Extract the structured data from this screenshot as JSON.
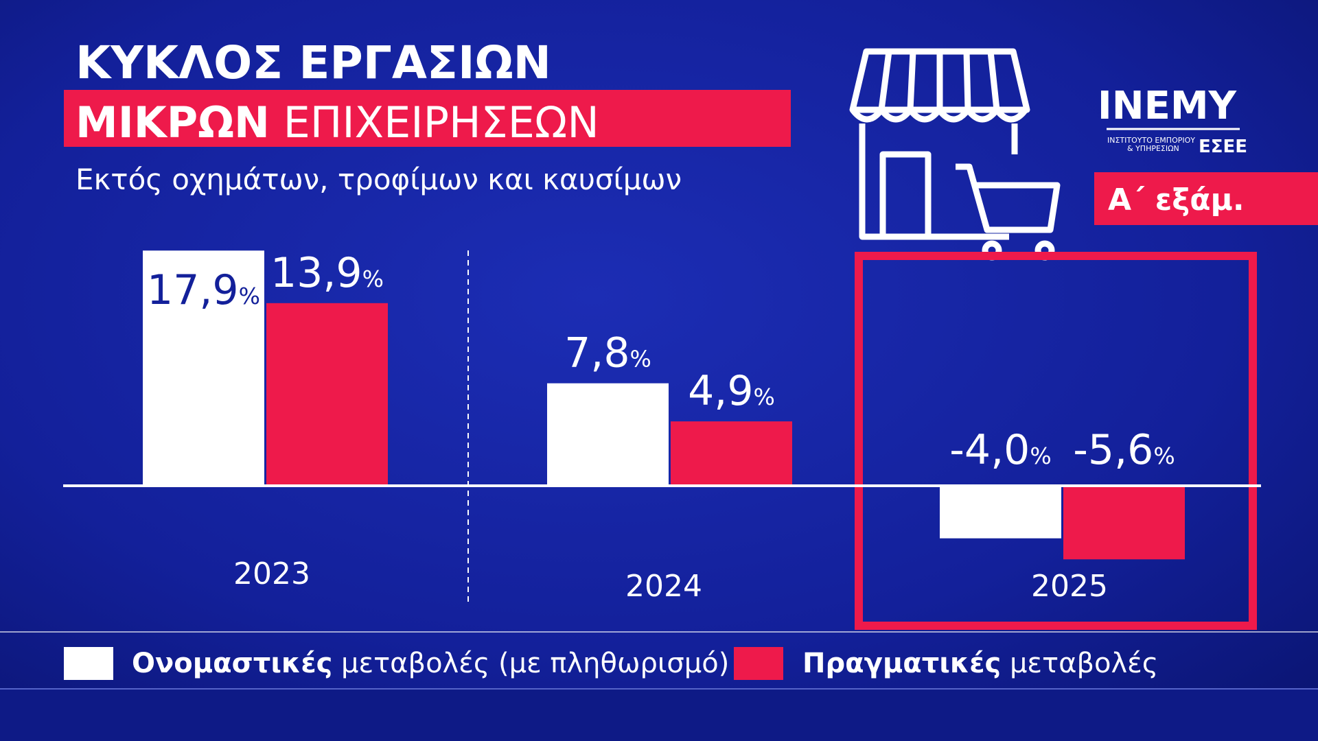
{
  "chart_data": {
    "type": "bar",
    "title": "ΚΥΚΛΟΣ ΕΡΓΑΣΙΩΝ",
    "title_highlight": "ΜΙΚΡΩΝ ΕΠΙΧΕΙΡΗΣΕΩΝ",
    "subtitle": "Εκτός οχημάτων, τροφίμων και καυσίμων",
    "annotation": "Α΄ εξάμ.",
    "logo": {
      "name": "ΙΝΕΜΥ",
      "line1": "ΙΝΣΤΙΤΟΥΤΟ ΕΜΠΟΡΙΟΥ",
      "line2": "& ΥΠΗΡΕΣΙΩΝ",
      "org": "ΕΣΕΕ"
    },
    "categories": [
      "2023",
      "2024",
      "2025"
    ],
    "series": [
      {
        "name": "Ονομαστικές μεταβολές (με πληθωρισμό)",
        "color": "#ffffff",
        "values": [
          17.9,
          7.8,
          -4.0
        ],
        "value_labels": [
          "17,9%",
          "7,8%",
          "-4,0%"
        ]
      },
      {
        "name": "Πραγματικές μεταβολές",
        "color": "#ee1a4b",
        "values": [
          13.9,
          4.9,
          -5.6
        ],
        "value_labels": [
          "13,9%",
          "4,9%",
          "-5,6%"
        ]
      }
    ],
    "legend": "bottom"
  }
}
